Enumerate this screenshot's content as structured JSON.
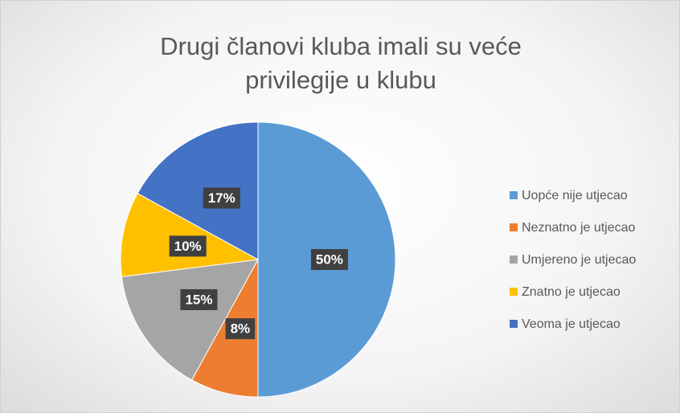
{
  "chart_data": {
    "type": "pie",
    "title": "Drugi članovi kluba imali su veće privilegije u klubu",
    "categories": [
      "Uopće nije utjecao",
      "Neznatno je utjecao",
      "Umjereno je utjecao",
      "Znatno je utjecao",
      "Veoma je utjecao"
    ],
    "values": [
      50,
      8,
      15,
      10,
      17
    ],
    "value_labels": [
      "50%",
      "8%",
      "15%",
      "10%",
      "17%"
    ],
    "colors": [
      "#5b9bd5",
      "#ed7d31",
      "#a5a5a5",
      "#ffc000",
      "#4472c4"
    ],
    "legend": "right"
  }
}
